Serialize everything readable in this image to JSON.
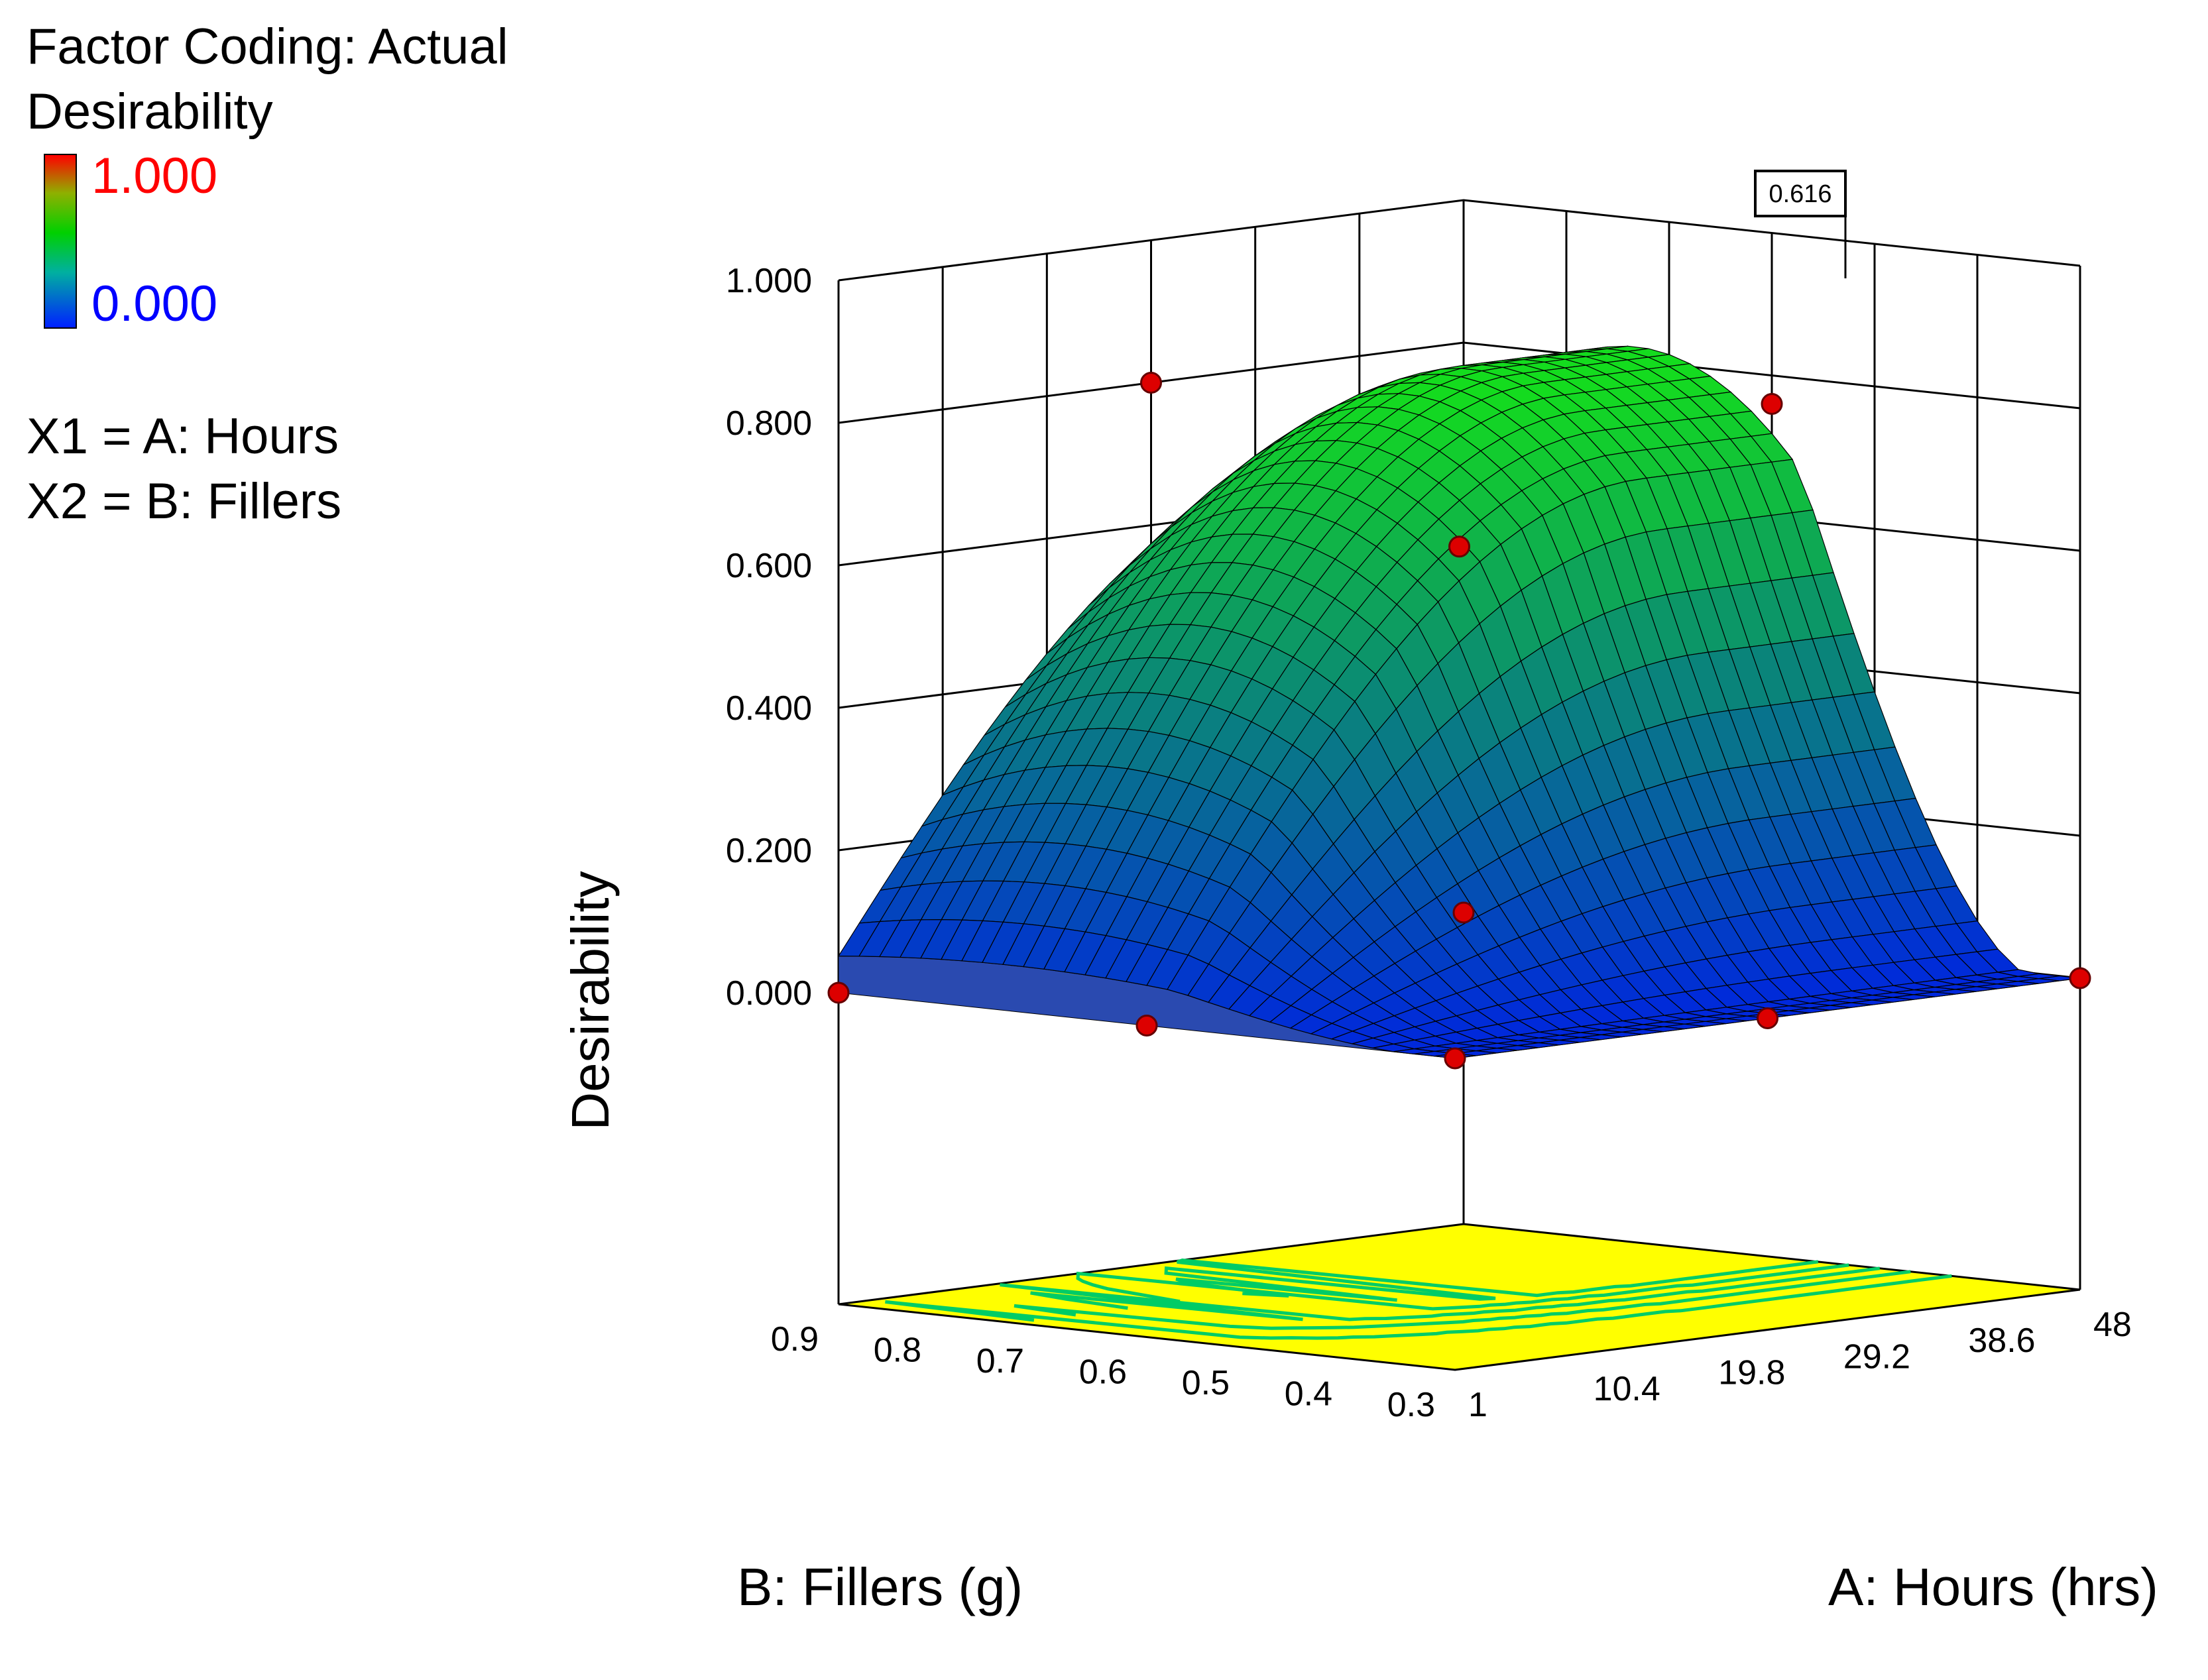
{
  "legend": {
    "coding": "Factor Coding: Actual",
    "response": "Desirability",
    "cbar_max": "1.000",
    "cbar_min": "0.000",
    "x1": "X1 = A: Hours",
    "x2": "X2 = B: Fillers"
  },
  "colors": {
    "high": "#ff0000",
    "mid": "#00cc00",
    "low": "#0000ff",
    "contour_floor": "#ffff00",
    "contour_line": "#00cc66",
    "design_point": "#dd0000"
  },
  "chart_data": {
    "type": "surface3d",
    "title": "",
    "zlabel": "Desirability",
    "xlabel": "A: Hours (hrs)",
    "ylabel": "B: Fillers (g)",
    "z_ticks": [
      "0.000",
      "0.200",
      "0.400",
      "0.600",
      "0.800",
      "1.000"
    ],
    "x_ticks": [
      "1",
      "10.4",
      "19.8",
      "29.2",
      "38.6",
      "48"
    ],
    "y_ticks": [
      "0.3",
      "0.4",
      "0.5",
      "0.6",
      "0.7",
      "0.8",
      "0.9"
    ],
    "x_range": [
      1,
      48
    ],
    "y_range": [
      0.3,
      0.9
    ],
    "zlim": [
      0,
      1
    ],
    "annotation": "0.616",
    "design_points": [
      {
        "x": 1,
        "y": 0.3,
        "z": 0.0
      },
      {
        "x": 48,
        "y": 0.3,
        "z": 0.0
      },
      {
        "x": 1,
        "y": 0.9,
        "z": 0.0
      },
      {
        "x": 48,
        "y": 0.9,
        "z": 0.0
      },
      {
        "x": 24.5,
        "y": 0.3,
        "z": 0.0
      },
      {
        "x": 1,
        "y": 0.6,
        "z": 0.0
      },
      {
        "x": 24.5,
        "y": 0.6,
        "z": 0.616
      },
      {
        "x": 48,
        "y": 0.6,
        "z": 0.76
      },
      {
        "x": 24.5,
        "y": 0.9,
        "z": 0.8
      }
    ]
  }
}
